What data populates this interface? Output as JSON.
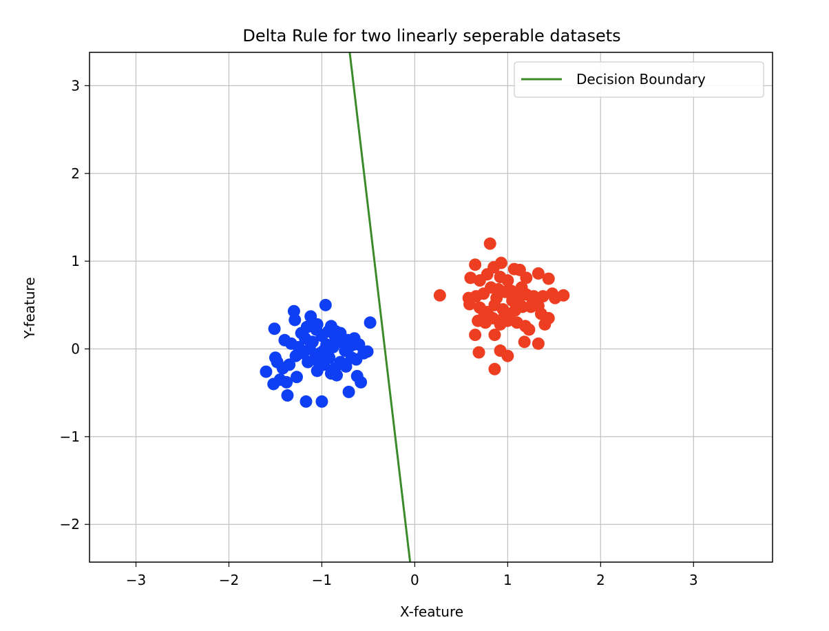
{
  "chart_data": {
    "type": "scatter",
    "title": "Delta Rule for two linearly seperable datasets",
    "xlabel": "X-feature",
    "ylabel": "Y-feature",
    "xlim": [
      -3.5,
      3.85
    ],
    "ylim": [
      -2.43,
      3.38
    ],
    "xticks": [
      -3,
      -2,
      -1,
      0,
      1,
      2,
      3
    ],
    "yticks": [
      -2,
      -1,
      0,
      1,
      2,
      3
    ],
    "xtick_labels": [
      "−3",
      "−2",
      "−1",
      "0",
      "1",
      "2",
      "3"
    ],
    "ytick_labels": [
      "−2",
      "−1",
      "0",
      "1",
      "2",
      "3"
    ],
    "grid": true,
    "legend": {
      "placement": "top-right",
      "entries": [
        "Decision Boundary"
      ]
    },
    "colors": {
      "class_a": "#0f3ff5",
      "class_b": "#ee3e22",
      "boundary": "#3a8a2a",
      "grid": "#c0c0c0"
    },
    "series": [
      {
        "type": "scatter",
        "color": "#0f3ff5",
        "points": [
          [
            -1.3,
            0.43
          ],
          [
            -0.96,
            0.5
          ],
          [
            -1.51,
            0.23
          ],
          [
            -0.48,
            0.3
          ],
          [
            -1.29,
            0.33
          ],
          [
            -1.12,
            0.37
          ],
          [
            -1.05,
            0.28
          ],
          [
            -0.9,
            0.26
          ],
          [
            -0.85,
            0.2
          ],
          [
            -0.8,
            0.18
          ],
          [
            -0.72,
            0.1
          ],
          [
            -0.65,
            0.12
          ],
          [
            -0.6,
            0.05
          ],
          [
            -0.51,
            -0.03
          ],
          [
            -0.55,
            -0.05
          ],
          [
            -1.4,
            0.1
          ],
          [
            -1.33,
            0.06
          ],
          [
            -1.22,
            0.18
          ],
          [
            -1.18,
            0.12
          ],
          [
            -1.1,
            0.08
          ],
          [
            -1.0,
            0.15
          ],
          [
            -0.95,
            0.05
          ],
          [
            -0.88,
            0.02
          ],
          [
            -0.82,
            0.08
          ],
          [
            -0.75,
            -0.02
          ],
          [
            -0.7,
            0.03
          ],
          [
            -0.68,
            -0.1
          ],
          [
            -0.63,
            -0.12
          ],
          [
            -1.5,
            -0.1
          ],
          [
            -1.48,
            -0.15
          ],
          [
            -1.42,
            -0.22
          ],
          [
            -1.35,
            -0.18
          ],
          [
            -1.28,
            -0.08
          ],
          [
            -1.2,
            -0.05
          ],
          [
            -1.15,
            -0.15
          ],
          [
            -1.08,
            -0.12
          ],
          [
            -1.02,
            -0.05
          ],
          [
            -0.98,
            -0.18
          ],
          [
            -0.92,
            -0.1
          ],
          [
            -0.86,
            -0.22
          ],
          [
            -0.8,
            -0.15
          ],
          [
            -0.74,
            -0.2
          ],
          [
            -1.6,
            -0.26
          ],
          [
            -1.52,
            -0.4
          ],
          [
            -1.45,
            -0.35
          ],
          [
            -1.38,
            -0.38
          ],
          [
            -1.27,
            -0.32
          ],
          [
            -1.37,
            -0.53
          ],
          [
            -1.17,
            -0.6
          ],
          [
            -1.0,
            -0.6
          ],
          [
            -0.71,
            -0.49
          ],
          [
            -0.58,
            -0.38
          ],
          [
            -0.62,
            -0.31
          ],
          [
            -0.84,
            -0.3
          ],
          [
            -1.05,
            -0.25
          ],
          [
            -0.9,
            -0.28
          ],
          [
            -1.13,
            0.0
          ],
          [
            -1.25,
            0.02
          ],
          [
            -0.98,
            -0.02
          ],
          [
            -0.78,
            0.12
          ],
          [
            -0.86,
            0.15
          ],
          [
            -0.93,
            0.2
          ],
          [
            -1.06,
            0.22
          ],
          [
            -0.66,
            0.05
          ],
          [
            -1.16,
            0.25
          ]
        ]
      },
      {
        "type": "scatter",
        "color": "#ee3e22",
        "points": [
          [
            0.81,
            1.2
          ],
          [
            0.65,
            0.96
          ],
          [
            0.93,
            0.98
          ],
          [
            0.85,
            0.93
          ],
          [
            1.07,
            0.91
          ],
          [
            1.13,
            0.9
          ],
          [
            0.27,
            0.61
          ],
          [
            0.6,
            0.81
          ],
          [
            0.7,
            0.78
          ],
          [
            0.78,
            0.85
          ],
          [
            0.92,
            0.82
          ],
          [
            1.0,
            0.78
          ],
          [
            1.2,
            0.81
          ],
          [
            1.33,
            0.86
          ],
          [
            1.44,
            0.8
          ],
          [
            1.6,
            0.61
          ],
          [
            1.48,
            0.63
          ],
          [
            1.51,
            0.58
          ],
          [
            1.38,
            0.6
          ],
          [
            1.27,
            0.55
          ],
          [
            0.58,
            0.58
          ],
          [
            0.66,
            0.6
          ],
          [
            0.74,
            0.63
          ],
          [
            0.82,
            0.7
          ],
          [
            0.9,
            0.68
          ],
          [
            0.97,
            0.65
          ],
          [
            1.05,
            0.6
          ],
          [
            1.12,
            0.58
          ],
          [
            1.2,
            0.62
          ],
          [
            1.25,
            0.48
          ],
          [
            0.59,
            0.51
          ],
          [
            0.7,
            0.47
          ],
          [
            0.78,
            0.42
          ],
          [
            0.86,
            0.5
          ],
          [
            0.95,
            0.45
          ],
          [
            1.02,
            0.4
          ],
          [
            1.08,
            0.44
          ],
          [
            1.16,
            0.48
          ],
          [
            1.33,
            0.49
          ],
          [
            1.36,
            0.4
          ],
          [
            0.68,
            0.32
          ],
          [
            0.76,
            0.3
          ],
          [
            0.84,
            0.35
          ],
          [
            0.92,
            0.28
          ],
          [
            1.0,
            0.32
          ],
          [
            1.1,
            0.3
          ],
          [
            1.19,
            0.26
          ],
          [
            1.23,
            0.22
          ],
          [
            1.44,
            0.35
          ],
          [
            1.4,
            0.28
          ],
          [
            0.65,
            0.16
          ],
          [
            0.86,
            0.16
          ],
          [
            1.18,
            0.08
          ],
          [
            1.33,
            0.06
          ],
          [
            0.69,
            -0.04
          ],
          [
            0.92,
            -0.02
          ],
          [
            1.0,
            -0.08
          ],
          [
            0.86,
            -0.23
          ],
          [
            0.75,
            0.38
          ],
          [
            1.05,
            0.55
          ],
          [
            0.88,
            0.58
          ],
          [
            0.96,
            0.36
          ],
          [
            1.28,
            0.6
          ],
          [
            1.15,
            0.7
          ],
          [
            1.04,
            0.66
          ]
        ]
      },
      {
        "type": "line",
        "name": "Decision Boundary",
        "color": "#3a8a2a",
        "points": [
          [
            -0.7,
            3.38
          ],
          [
            -0.05,
            -2.43
          ]
        ]
      }
    ]
  }
}
